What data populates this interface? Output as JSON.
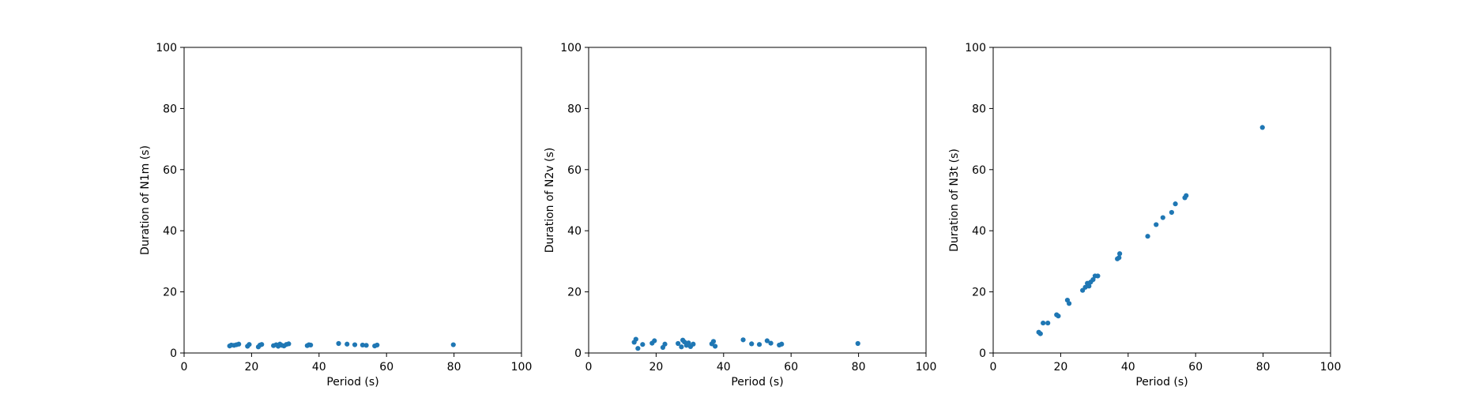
{
  "chart_data": [
    {
      "type": "scatter",
      "title": "",
      "xlabel": "Period (s)",
      "ylabel": "Duration of N1m (s)",
      "xlim": [
        0,
        100
      ],
      "ylim": [
        0,
        100
      ],
      "xticks": [
        0,
        20,
        40,
        60,
        80,
        100
      ],
      "yticks": [
        0,
        20,
        40,
        60,
        80,
        100
      ],
      "grid": false,
      "color": "#1f77b4",
      "x": [
        13.5,
        14.0,
        14.8,
        15.5,
        16.2,
        18.8,
        19.3,
        22.0,
        22.5,
        23.0,
        26.5,
        27.3,
        27.9,
        28.4,
        29.0,
        29.6,
        30.3,
        31.0,
        36.5,
        37.0,
        37.5,
        45.8,
        48.3,
        50.6,
        52.9,
        54.0,
        56.5,
        57.2,
        79.8
      ],
      "y": [
        2.3,
        2.6,
        2.5,
        2.7,
        2.9,
        2.2,
        2.8,
        2.0,
        2.6,
        2.8,
        2.4,
        2.7,
        2.2,
        2.9,
        2.5,
        2.3,
        2.8,
        3.0,
        2.4,
        2.7,
        2.6,
        3.1,
        2.9,
        2.7,
        2.6,
        2.5,
        2.3,
        2.6,
        2.7
      ]
    },
    {
      "type": "scatter",
      "title": "",
      "xlabel": "Period (s)",
      "ylabel": "Duration of N2v (s)",
      "xlim": [
        0,
        100
      ],
      "ylim": [
        0,
        100
      ],
      "xticks": [
        0,
        20,
        40,
        60,
        80,
        100
      ],
      "yticks": [
        0,
        20,
        40,
        60,
        80,
        100
      ],
      "grid": false,
      "color": "#1f77b4",
      "x": [
        13.5,
        14.0,
        14.6,
        16.0,
        18.8,
        19.5,
        22.0,
        22.6,
        26.5,
        27.5,
        27.9,
        28.4,
        29.0,
        29.6,
        30.2,
        31.0,
        36.5,
        37.0,
        37.5,
        45.8,
        48.3,
        50.6,
        52.9,
        54.0,
        56.5,
        57.2,
        79.8
      ],
      "y": [
        3.5,
        4.5,
        1.5,
        2.8,
        3.2,
        4.0,
        1.8,
        2.9,
        3.1,
        2.0,
        4.2,
        3.6,
        2.5,
        3.3,
        2.1,
        2.9,
        3.0,
        3.8,
        2.2,
        4.3,
        3.0,
        2.8,
        4.0,
        3.2,
        2.6,
        2.9,
        3.1
      ]
    },
    {
      "type": "scatter",
      "title": "",
      "xlabel": "Period (s)",
      "ylabel": "Duration of N3t (s)",
      "xlim": [
        0,
        100
      ],
      "ylim": [
        0,
        100
      ],
      "xticks": [
        0,
        20,
        40,
        60,
        80,
        100
      ],
      "yticks": [
        0,
        20,
        40,
        60,
        80,
        100
      ],
      "grid": false,
      "color": "#1f77b4",
      "x": [
        13.5,
        14.0,
        14.8,
        16.2,
        18.8,
        19.3,
        22.0,
        22.5,
        26.5,
        27.3,
        27.9,
        28.4,
        28.9,
        29.6,
        30.2,
        31.0,
        36.8,
        37.3,
        37.5,
        45.8,
        48.3,
        50.3,
        52.9,
        54.0,
        56.8,
        57.2,
        79.8
      ],
      "y": [
        6.8,
        6.3,
        9.8,
        9.8,
        12.5,
        12.1,
        17.3,
        16.2,
        20.5,
        21.5,
        22.8,
        21.9,
        23.2,
        24.0,
        25.2,
        25.2,
        30.8,
        31.2,
        32.5,
        38.2,
        42.0,
        44.3,
        46.0,
        48.8,
        50.8,
        51.5,
        73.8
      ]
    }
  ]
}
